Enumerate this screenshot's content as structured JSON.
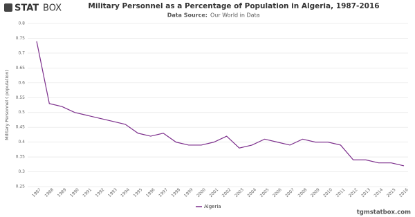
{
  "brand": {
    "bold": "STAT",
    "light": "BOX"
  },
  "footer": "tgmstatbox.com",
  "chart_data": {
    "type": "line",
    "title": "Military Personnel as a Percentage of Population in Algeria, 1987-2016",
    "source_label": "Data Source:",
    "source": "Our World in Data",
    "y_label": "Military Personnel ( population)",
    "x": [
      1987,
      1988,
      1989,
      1990,
      1991,
      1992,
      1993,
      1994,
      1995,
      1996,
      1997,
      1998,
      1999,
      2000,
      2001,
      2002,
      2003,
      2004,
      2005,
      2006,
      2007,
      2008,
      2009,
      2010,
      2011,
      2012,
      2013,
      2014,
      2015,
      2016
    ],
    "xlim": [
      1987,
      2016
    ],
    "series": [
      {
        "name": "Algeria",
        "color": "#7b2d8b",
        "values": [
          0.74,
          0.53,
          0.52,
          0.5,
          0.49,
          0.48,
          0.47,
          0.46,
          0.43,
          0.42,
          0.43,
          0.4,
          0.39,
          0.39,
          0.4,
          0.42,
          0.38,
          0.39,
          0.41,
          0.4,
          0.39,
          0.41,
          0.4,
          0.4,
          0.39,
          0.34,
          0.34,
          0.33,
          0.33,
          0.32
        ]
      }
    ],
    "ylim": [
      0.25,
      0.8
    ],
    "yticks": [
      0.25,
      0.3,
      0.35,
      0.4,
      0.45,
      0.5,
      0.55,
      0.6,
      0.65,
      0.7,
      0.75,
      0.8
    ],
    "grid": true,
    "legend": "bottom"
  }
}
